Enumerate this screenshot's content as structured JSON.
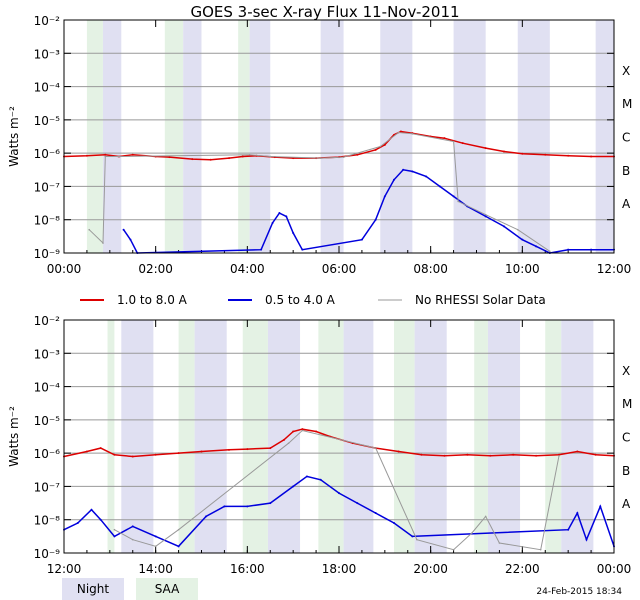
{
  "chart_data": [
    {
      "type": "line",
      "panel": "top",
      "title": "GOES 3-sec X-ray Flux    11-Nov-2011",
      "ylabel": "Watts m⁻²",
      "ylim_log10": [
        -9,
        -2
      ],
      "ytick_exponents": [
        -9,
        -8,
        -7,
        -6,
        -5,
        -4,
        -3,
        -2
      ],
      "ytick_labels": [
        "10⁻⁹",
        "10⁻⁸",
        "10⁻⁷",
        "10⁻⁶",
        "10⁻⁵",
        "10⁻⁴",
        "10⁻³",
        "10⁻²"
      ],
      "flare_classes": [
        {
          "label": "A",
          "exp": -8
        },
        {
          "label": "B",
          "exp": -7
        },
        {
          "label": "C",
          "exp": -6
        },
        {
          "label": "M",
          "exp": -5
        },
        {
          "label": "X",
          "exp": -4
        }
      ],
      "xlim_hours": [
        0,
        12
      ],
      "xtick_hours": [
        0,
        2,
        4,
        6,
        8,
        10,
        12
      ],
      "xtick_labels": [
        "00:00",
        "02:00",
        "04:00",
        "06:00",
        "08:00",
        "10:00",
        "12:00"
      ],
      "night": [
        [
          0.85,
          1.25
        ],
        [
          2.6,
          3.0
        ],
        [
          4.05,
          4.5
        ],
        [
          5.6,
          6.1
        ],
        [
          6.9,
          7.6
        ],
        [
          8.5,
          9.2
        ],
        [
          9.9,
          10.6
        ],
        [
          11.6,
          12.0
        ]
      ],
      "saa": [
        [
          0.5,
          0.85
        ],
        [
          2.2,
          2.6
        ],
        [
          3.8,
          4.05
        ]
      ],
      "series": [
        {
          "name": "1.0 to 8.0 A",
          "color": "#dd0000",
          "points": [
            [
              0,
              -6.1
            ],
            [
              0.5,
              -6.08
            ],
            [
              0.9,
              -6.05
            ],
            [
              1.2,
              -6.1
            ],
            [
              1.5,
              -6.05
            ],
            [
              2.0,
              -6.1
            ],
            [
              2.3,
              -6.12
            ],
            [
              2.8,
              -6.18
            ],
            [
              3.2,
              -6.2
            ],
            [
              3.6,
              -6.15
            ],
            [
              3.9,
              -6.1
            ],
            [
              4.2,
              -6.08
            ],
            [
              4.6,
              -6.12
            ],
            [
              5.0,
              -6.15
            ],
            [
              5.5,
              -6.15
            ],
            [
              6.0,
              -6.12
            ],
            [
              6.4,
              -6.05
            ],
            [
              6.8,
              -5.9
            ],
            [
              7.0,
              -5.75
            ],
            [
              7.2,
              -5.45
            ],
            [
              7.35,
              -5.35
            ],
            [
              7.6,
              -5.4
            ],
            [
              8.0,
              -5.5
            ],
            [
              8.3,
              -5.55
            ],
            [
              8.7,
              -5.7
            ],
            [
              9.2,
              -5.85
            ],
            [
              9.6,
              -5.95
            ],
            [
              10.0,
              -6.02
            ],
            [
              10.5,
              -6.05
            ],
            [
              11.0,
              -6.08
            ],
            [
              11.5,
              -6.1
            ],
            [
              12.0,
              -6.1
            ]
          ]
        },
        {
          "name": "0.5 to 4.0 A",
          "color": "#0000dd",
          "points": [
            [
              1.3,
              -8.3
            ],
            [
              1.45,
              -8.6
            ],
            [
              1.6,
              -9.0
            ],
            [
              4.3,
              -8.9
            ],
            [
              4.55,
              -8.1
            ],
            [
              4.7,
              -7.8
            ],
            [
              4.85,
              -7.9
            ],
            [
              5.0,
              -8.4
            ],
            [
              5.2,
              -8.9
            ],
            [
              6.5,
              -8.6
            ],
            [
              6.8,
              -8.0
            ],
            [
              7.0,
              -7.3
            ],
            [
              7.2,
              -6.8
            ],
            [
              7.4,
              -6.5
            ],
            [
              7.6,
              -6.55
            ],
            [
              7.9,
              -6.7
            ],
            [
              8.2,
              -7.0
            ],
            [
              8.5,
              -7.3
            ],
            [
              8.8,
              -7.6
            ],
            [
              9.2,
              -7.9
            ],
            [
              9.6,
              -8.2
            ],
            [
              10.0,
              -8.6
            ],
            [
              10.3,
              -8.8
            ],
            [
              10.6,
              -9.0
            ],
            [
              11.0,
              -8.9
            ],
            [
              11.5,
              -8.9
            ],
            [
              12.0,
              -8.9
            ]
          ]
        },
        {
          "name": "No RHESSI Solar Data",
          "color": "#999999",
          "points": [
            [
              0.9,
              -6.1
            ],
            [
              1.2,
              -6.1
            ],
            [
              4.05,
              -6.05
            ],
            [
              4.5,
              -6.1
            ],
            [
              5.6,
              -6.15
            ],
            [
              6.1,
              -6.12
            ],
            [
              6.9,
              -5.8
            ],
            [
              7.3,
              -5.38
            ],
            [
              7.6,
              -5.42
            ],
            [
              8.5,
              -5.65
            ],
            [
              8.6,
              -7.45
            ],
            [
              9.2,
              -7.85
            ],
            [
              9.9,
              -8.3
            ],
            [
              10.6,
              -8.95
            ],
            [
              0.55,
              -8.3
            ],
            [
              0.85,
              -8.7
            ]
          ]
        }
      ]
    },
    {
      "type": "line",
      "panel": "bottom",
      "title": "",
      "ylabel": "Watts m⁻²",
      "ylim_log10": [
        -9,
        -2
      ],
      "ytick_exponents": [
        -9,
        -8,
        -7,
        -6,
        -5,
        -4,
        -3,
        -2
      ],
      "ytick_labels": [
        "10⁻⁹",
        "10⁻⁸",
        "10⁻⁷",
        "10⁻⁶",
        "10⁻⁵",
        "10⁻⁴",
        "10⁻³",
        "10⁻²"
      ],
      "flare_classes": [
        {
          "label": "A",
          "exp": -8
        },
        {
          "label": "B",
          "exp": -7
        },
        {
          "label": "C",
          "exp": -6
        },
        {
          "label": "M",
          "exp": -5
        },
        {
          "label": "X",
          "exp": -4
        }
      ],
      "xlim_hours": [
        12,
        24
      ],
      "xtick_hours": [
        12,
        14,
        16,
        18,
        20,
        22,
        24
      ],
      "xtick_labels": [
        "12:00",
        "14:00",
        "16:00",
        "18:00",
        "20:00",
        "22:00",
        "00:00"
      ],
      "night": [
        [
          13.25,
          13.95
        ],
        [
          14.85,
          15.55
        ],
        [
          16.45,
          17.15
        ],
        [
          18.1,
          18.75
        ],
        [
          19.65,
          20.35
        ],
        [
          21.25,
          21.95
        ],
        [
          22.85,
          23.55
        ]
      ],
      "saa": [
        [
          12.95,
          13.1
        ],
        [
          14.5,
          14.85
        ],
        [
          15.9,
          16.45
        ],
        [
          17.55,
          18.1
        ],
        [
          19.2,
          19.65
        ],
        [
          20.95,
          21.25
        ],
        [
          22.5,
          22.85
        ]
      ],
      "series": [
        {
          "name": "1.0 to 8.0 A",
          "color": "#dd0000",
          "points": [
            [
              12,
              -6.1
            ],
            [
              12.5,
              -5.95
            ],
            [
              12.8,
              -5.85
            ],
            [
              13.1,
              -6.05
            ],
            [
              13.5,
              -6.1
            ],
            [
              14.0,
              -6.05
            ],
            [
              14.5,
              -6.0
            ],
            [
              15.0,
              -5.95
            ],
            [
              15.6,
              -5.9
            ],
            [
              16.0,
              -5.88
            ],
            [
              16.5,
              -5.85
            ],
            [
              16.8,
              -5.6
            ],
            [
              17.0,
              -5.35
            ],
            [
              17.2,
              -5.28
            ],
            [
              17.5,
              -5.35
            ],
            [
              17.8,
              -5.5
            ],
            [
              18.3,
              -5.7
            ],
            [
              18.8,
              -5.85
            ],
            [
              19.3,
              -5.95
            ],
            [
              19.8,
              -6.05
            ],
            [
              20.3,
              -6.08
            ],
            [
              20.8,
              -6.05
            ],
            [
              21.3,
              -6.08
            ],
            [
              21.8,
              -6.05
            ],
            [
              22.3,
              -6.08
            ],
            [
              22.8,
              -6.05
            ],
            [
              23.2,
              -5.95
            ],
            [
              23.6,
              -6.05
            ],
            [
              24.0,
              -6.08
            ]
          ]
        },
        {
          "name": "0.5 to 4.0 A",
          "color": "#0000dd",
          "points": [
            [
              12,
              -8.3
            ],
            [
              12.3,
              -8.1
            ],
            [
              12.6,
              -7.7
            ],
            [
              12.8,
              -8.0
            ],
            [
              13.1,
              -8.5
            ],
            [
              13.5,
              -8.2
            ],
            [
              14.0,
              -8.5
            ],
            [
              14.5,
              -8.8
            ],
            [
              15.1,
              -7.9
            ],
            [
              15.5,
              -7.6
            ],
            [
              16.0,
              -7.6
            ],
            [
              16.5,
              -7.5
            ],
            [
              17.0,
              -7.0
            ],
            [
              17.3,
              -6.7
            ],
            [
              17.6,
              -6.8
            ],
            [
              18.0,
              -7.2
            ],
            [
              18.4,
              -7.5
            ],
            [
              18.8,
              -7.8
            ],
            [
              19.2,
              -8.1
            ],
            [
              19.6,
              -8.5
            ],
            [
              23.0,
              -8.3
            ],
            [
              23.2,
              -7.8
            ],
            [
              23.4,
              -8.6
            ],
            [
              23.7,
              -7.6
            ],
            [
              24.0,
              -8.8
            ]
          ]
        },
        {
          "name": "No RHESSI Solar Data",
          "color": "#999999",
          "points": [
            [
              13.1,
              -8.3
            ],
            [
              13.5,
              -8.6
            ],
            [
              14.0,
              -8.8
            ],
            [
              14.5,
              -8.3
            ],
            [
              16.9,
              -5.7
            ],
            [
              17.2,
              -5.32
            ],
            [
              18.8,
              -5.85
            ],
            [
              19.7,
              -8.6
            ],
            [
              20.5,
              -8.9
            ],
            [
              20.9,
              -8.4
            ],
            [
              21.2,
              -7.9
            ],
            [
              21.5,
              -8.7
            ],
            [
              22.4,
              -8.9
            ],
            [
              22.8,
              -6.08
            ]
          ]
        }
      ]
    }
  ],
  "legend": [
    {
      "label": "1.0 to 8.0 A",
      "color": "#dd0000"
    },
    {
      "label": "0.5 to 4.0 A",
      "color": "#0000dd"
    },
    {
      "label": "No RHESSI Solar Data",
      "color": "#999999"
    }
  ],
  "shade_legend": [
    {
      "label": "Night",
      "color": "#e0e0f2"
    },
    {
      "label": "SAA",
      "color": "#e4f2e4"
    }
  ],
  "timestamp": "24-Feb-2015 18:34"
}
